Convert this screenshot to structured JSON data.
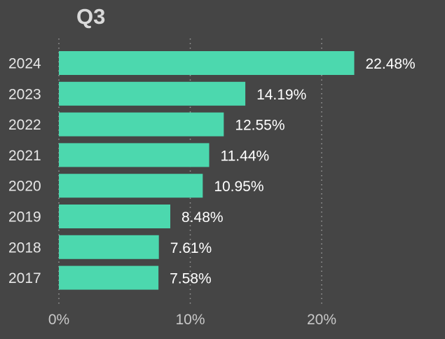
{
  "chart_data": {
    "type": "bar",
    "orientation": "horizontal",
    "title": "Q3",
    "categories": [
      "2024",
      "2023",
      "2022",
      "2021",
      "2020",
      "2019",
      "2018",
      "2017"
    ],
    "values": [
      22.48,
      14.19,
      12.55,
      11.44,
      10.95,
      8.48,
      7.61,
      7.58
    ],
    "value_labels": [
      "22.48%",
      "14.19%",
      "12.55%",
      "11.44%",
      "10.95%",
      "8.48%",
      "7.61%",
      "7.58%"
    ],
    "xticks": [
      0,
      10,
      20
    ],
    "xtick_labels": [
      "0%",
      "10%",
      "20%"
    ],
    "xlim": [
      0,
      29
    ],
    "xlabel": "",
    "ylabel": "",
    "grid": "vertical dotted",
    "legend": "none"
  },
  "colors": {
    "background": "#454545",
    "bar": "#4cd8ae",
    "grid": "#9a9a9a",
    "title": "#d9d9d9"
  }
}
